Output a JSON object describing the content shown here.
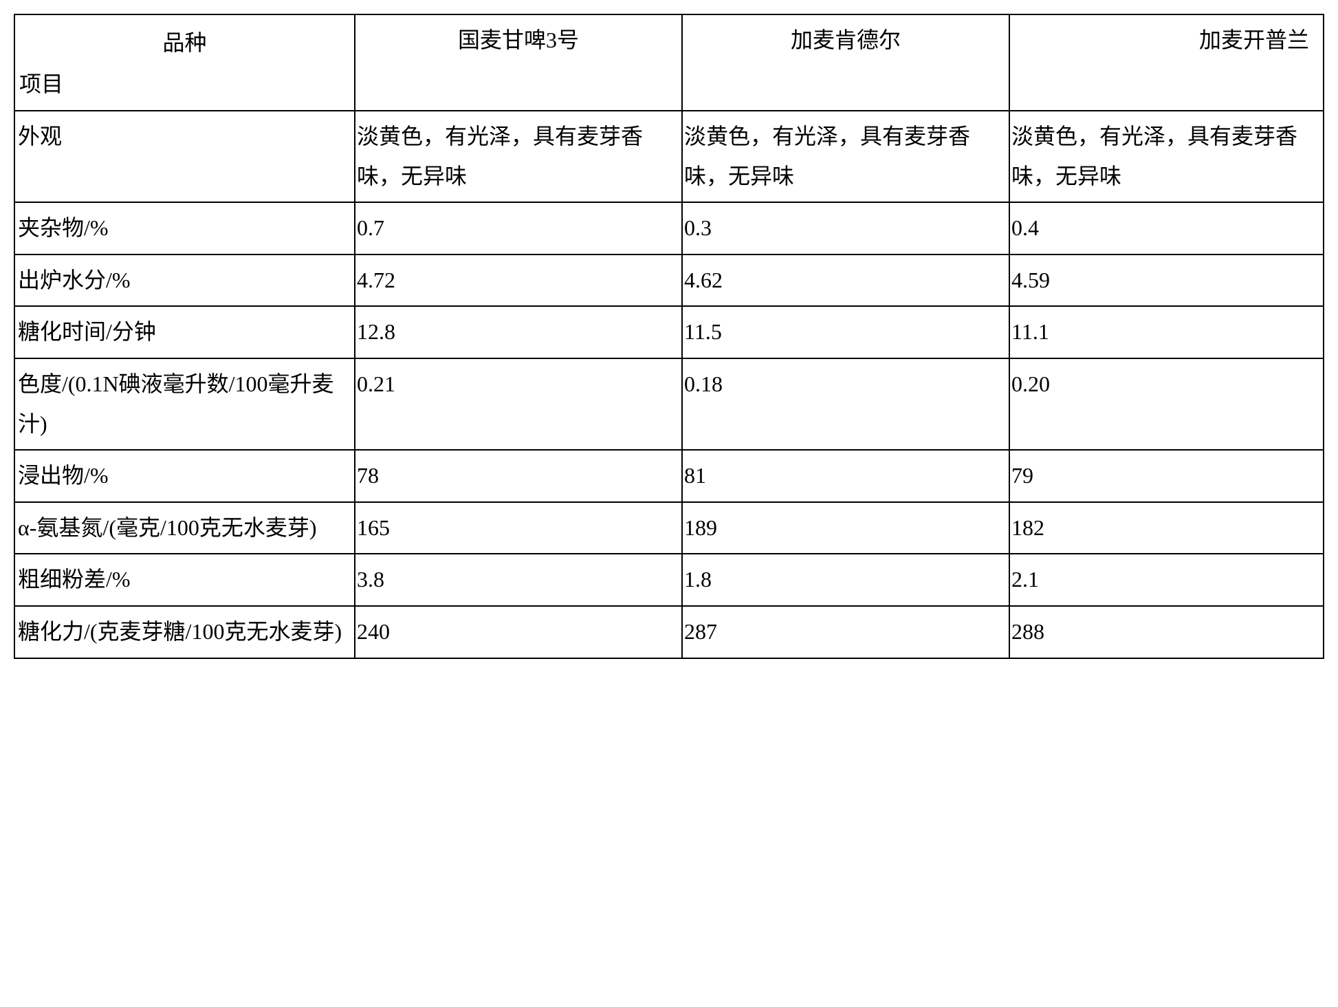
{
  "table": {
    "type": "table",
    "background_color": "#ffffff",
    "border_color": "#000000",
    "text_color": "#000000",
    "font_family": "SimSun",
    "font_size": 32,
    "line_height": 1.8,
    "border_width": 2,
    "columns": [
      {
        "key": "label",
        "width_pct": 26
      },
      {
        "key": "variety1",
        "width_pct": 25
      },
      {
        "key": "variety2",
        "width_pct": 25
      },
      {
        "key": "variety3",
        "width_pct": 24
      }
    ],
    "header": {
      "diagonal_top": "品种",
      "diagonal_bottom": "项目",
      "varieties": [
        "国麦甘啤3号",
        "加麦肯德尔",
        "加麦开普兰"
      ]
    },
    "rows": [
      {
        "label": "外观",
        "values": [
          "淡黄色，有光泽，具有麦芽香味，无异味",
          "淡黄色，有光泽，具有麦芽香味，无异味",
          "淡黄色，有光泽，具有麦芽香味，无异味"
        ]
      },
      {
        "label": "夹杂物/%",
        "values": [
          "0.7",
          "0.3",
          "0.4"
        ]
      },
      {
        "label": "出炉水分/%",
        "values": [
          "4.72",
          "4.62",
          "4.59"
        ]
      },
      {
        "label": "糖化时间/分钟",
        "values": [
          "12.8",
          "11.5",
          "11.1"
        ]
      },
      {
        "label": "色度/(0.1N碘液毫升数/100毫升麦汁)",
        "values": [
          "0.21",
          "0.18",
          "0.20"
        ]
      },
      {
        "label": "浸出物/%",
        "values": [
          "78",
          "81",
          "79"
        ]
      },
      {
        "label": "α-氨基氮/(毫克/100克无水麦芽)",
        "values": [
          "165",
          "189",
          "182"
        ]
      },
      {
        "label": "粗细粉差/%",
        "values": [
          "3.8",
          "1.8",
          "2.1"
        ]
      },
      {
        "label": "糖化力/(克麦芽糖/100克无水麦芽)",
        "values": [
          "240",
          "287",
          "288"
        ]
      }
    ]
  }
}
